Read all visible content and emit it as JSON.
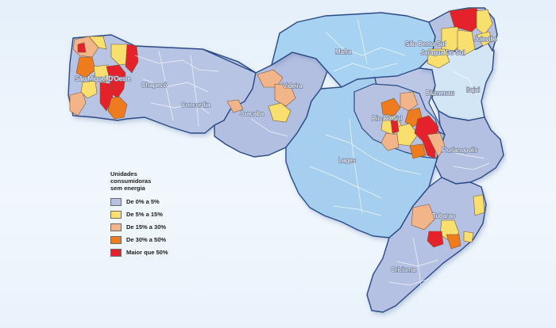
{
  "colors": {
    "class_0_5": "#b7c2e3",
    "class_5_15": "#f8df6e",
    "class_15_30": "#f2b489",
    "class_30_50": "#ee7b1e",
    "class_50_plus": "#e5212c",
    "region_blue_a": "#b8c4e4",
    "region_blue_b": "#a8d2f1",
    "region_blue_c": "#d2e6f6",
    "region_border": "#2b4a86",
    "background": "#e9f2fb"
  },
  "legend": {
    "title_line1": "Unidades",
    "title_line2": "consumidoras",
    "title_line3": "sem energia",
    "items": [
      {
        "label": "De 0% a 5%",
        "color": "#b7c2e3"
      },
      {
        "label": "De 5% a 15%",
        "color": "#f8df6e"
      },
      {
        "label": "De 15% a 30%",
        "color": "#f2b489"
      },
      {
        "label": "De 30% a 50%",
        "color": "#ee7b1e"
      },
      {
        "label": "Maior que 50%",
        "color": "#e5212c"
      }
    ]
  },
  "cities": {
    "sao_miguel_do_oeste": "São Miguel D'Oeste",
    "chapeco": "Chapecó",
    "concordia": "Concordia",
    "joacaba": "Joacaba",
    "videira": "Videira",
    "mafra": "Mafra",
    "sao_bento_do_sul": "São Bento Sul",
    "joinville": "Joinville",
    "jaragua_do_sul": "Jaragua Do Sul",
    "blumenau": "Blumenau",
    "itajai": "Itajai",
    "rio_do_sul": "Rio Do Sul",
    "florianopolis": "Florianopolis",
    "lages": "Lages",
    "tubarao": "Tubarao",
    "criciuma": "Criciuma"
  }
}
